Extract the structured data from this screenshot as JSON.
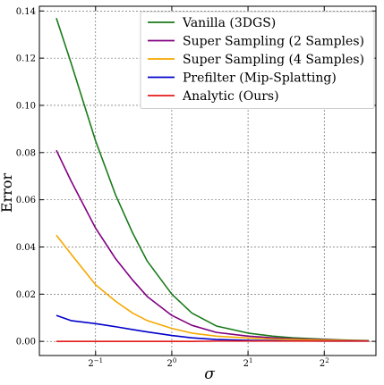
{
  "chart_data": {
    "type": "line",
    "xlabel": "σ",
    "ylabel": "Error",
    "x_scale": "log2",
    "xlim": [
      0.3,
      6.4
    ],
    "ylim": [
      -0.006,
      0.142
    ],
    "yticks": [
      0.0,
      0.02,
      0.04,
      0.06,
      0.08,
      0.1,
      0.12,
      0.14
    ],
    "ytick_labels": [
      "0.00",
      "0.02",
      "0.04",
      "0.06",
      "0.08",
      "0.10",
      "0.12",
      "0.14"
    ],
    "xticks": [
      {
        "value": 0.5,
        "base": "2",
        "exp": "−1"
      },
      {
        "value": 1,
        "base": "2",
        "exp": "0"
      },
      {
        "value": 2,
        "base": "2",
        "exp": "1"
      },
      {
        "value": 4,
        "base": "2",
        "exp": "2"
      }
    ],
    "grid": true,
    "legend_position": "top-right",
    "x": [
      0.35,
      0.4,
      0.5,
      0.6,
      0.7,
      0.8,
      1.0,
      1.2,
      1.5,
      2.0,
      2.5,
      3.0,
      4.0,
      5.0,
      6.0
    ],
    "series": [
      {
        "name": "Vanilla (3DGS)",
        "color": "#1a7a1a",
        "values": [
          0.137,
          0.118,
          0.085,
          0.062,
          0.046,
          0.034,
          0.02,
          0.012,
          0.0065,
          0.0035,
          0.0022,
          0.0015,
          0.0009,
          0.0005,
          0.0003
        ]
      },
      {
        "name": "Super Sampling (2 Samples)",
        "color": "#800080",
        "values": [
          0.081,
          0.068,
          0.048,
          0.035,
          0.026,
          0.019,
          0.011,
          0.0068,
          0.0038,
          0.0022,
          0.0015,
          0.0011,
          0.0007,
          0.0004,
          0.0002
        ]
      },
      {
        "name": "Super Sampling (4 Samples)",
        "color": "#f5a800",
        "values": [
          0.045,
          0.037,
          0.024,
          0.017,
          0.012,
          0.0088,
          0.0055,
          0.0035,
          0.0022,
          0.0014,
          0.001,
          0.0008,
          0.0005,
          0.0003,
          0.0002
        ]
      },
      {
        "name": "Prefilter (Mip-Splatting)",
        "color": "#0000cc",
        "values": [
          0.011,
          0.0088,
          0.0075,
          0.0062,
          0.005,
          0.004,
          0.0025,
          0.0015,
          0.0008,
          0.0004,
          0.0003,
          0.0002,
          0.0001,
          0.0001,
          0.0001
        ]
      },
      {
        "name": "Analytic (Ours)",
        "color": "#e41a1a",
        "values": [
          0.0,
          0.0,
          0.0,
          0.0,
          0.0,
          0.0,
          0.0,
          0.0,
          0.0001,
          0.0001,
          0.0001,
          0.0001,
          0.0001,
          0.0001,
          0.0001
        ]
      }
    ]
  }
}
